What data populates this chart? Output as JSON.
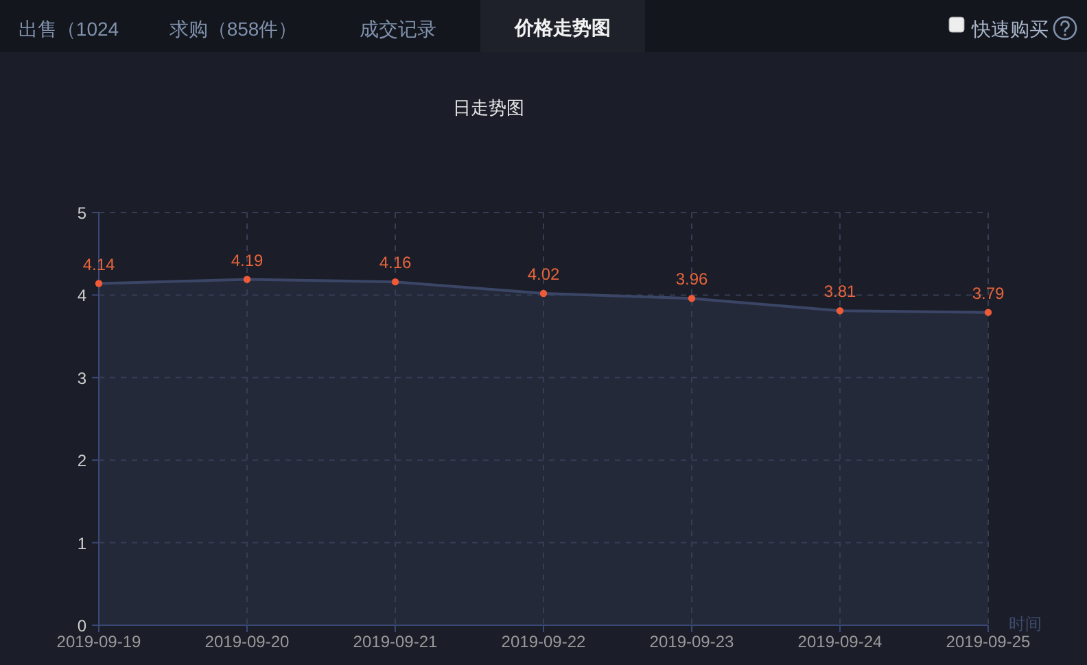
{
  "chart_data": [
    {
      "type": "other",
      "annotations": [
        "出售（1024",
        "求购（858件）",
        "成交记录",
        "价格走势图",
        "快速购买"
      ]
    },
    {
      "type": "area",
      "title": "日走势图",
      "xlabel": "时间",
      "categories": [
        "2019-09-19",
        "2019-09-20",
        "2019-09-21",
        "2019-09-22",
        "2019-09-23",
        "2019-09-24",
        "2019-09-25"
      ],
      "values": [
        4.14,
        4.19,
        4.16,
        4.02,
        3.96,
        3.81,
        3.79
      ],
      "color": "#3b4667",
      "ylim": [
        0,
        5
      ],
      "yticks": [
        0,
        1,
        2,
        3,
        4,
        5
      ],
      "grid": true,
      "marker": "circle",
      "data_labels": true
    }
  ]
}
